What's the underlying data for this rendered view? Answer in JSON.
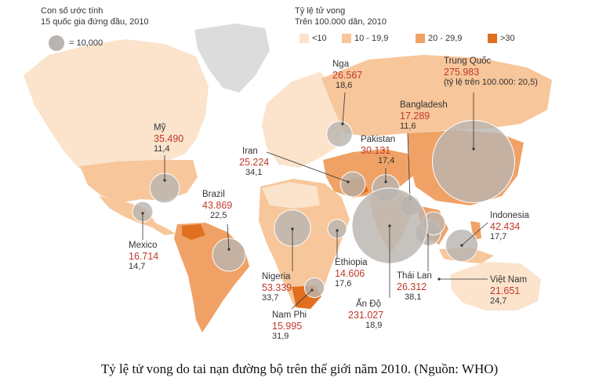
{
  "legend": {
    "size_title_1": "Con số ước tính",
    "size_title_2": "15 quốc gia đứng đầu, 2010",
    "size_key": "= 10,000",
    "rate_title_1": "Tỷ lệ tử vong",
    "rate_title_2": "Trên 100.000 dân, 2010",
    "classes": [
      {
        "label": "<10",
        "color": "#fbe3cc"
      },
      {
        "label": "10 - 19,9",
        "color": "#f7c69a"
      },
      {
        "label": "20 - 29,9",
        "color": "#f0a266"
      },
      {
        "label": ">30",
        "color": "#e0701f"
      }
    ]
  },
  "colors": {
    "no_data": "#dcdcdc",
    "bubble": "#b9b4b0",
    "leader": "#333333",
    "value": "#c0392b"
  },
  "countries": [
    {
      "name": "Trung Quốc",
      "value": "275.983",
      "rate": "(tỷ lệ trên 100.000: 20,5)"
    },
    {
      "name": "Nga",
      "value": "26.567",
      "rate": "18,6"
    },
    {
      "name": "Bangladesh",
      "value": "17.289",
      "rate": "11,6"
    },
    {
      "name": "Pakistan",
      "value": "30.131",
      "rate": "17,4"
    },
    {
      "name": "Mỹ",
      "value": "35.490",
      "rate": "11,4"
    },
    {
      "name": "Iran",
      "value": "25.224",
      "rate": "34,1"
    },
    {
      "name": "Brazil",
      "value": "43.869",
      "rate": "22,5"
    },
    {
      "name": "Indonesia",
      "value": "42.434",
      "rate": "17,7"
    },
    {
      "name": "Mexico",
      "value": "16.714",
      "rate": "14,7"
    },
    {
      "name": "Nigeria",
      "value": "53.339",
      "rate": "33,7"
    },
    {
      "name": "Ethiopia",
      "value": "14.606",
      "rate": "17,6"
    },
    {
      "name": "Thái Lan",
      "value": "26.312",
      "rate": "38,1"
    },
    {
      "name": "Việt Nam",
      "value": "21.651",
      "rate": "24,7"
    },
    {
      "name": "Nam Phi",
      "value": "15.995",
      "rate": "31,9"
    },
    {
      "name": "Ấn Độ",
      "value": "231.027",
      "rate": "18,9"
    }
  ],
  "caption": "Tỷ lệ tử vong do tai nạn đường bộ trên thế giới năm 2010. (Nguồn: WHO)"
}
